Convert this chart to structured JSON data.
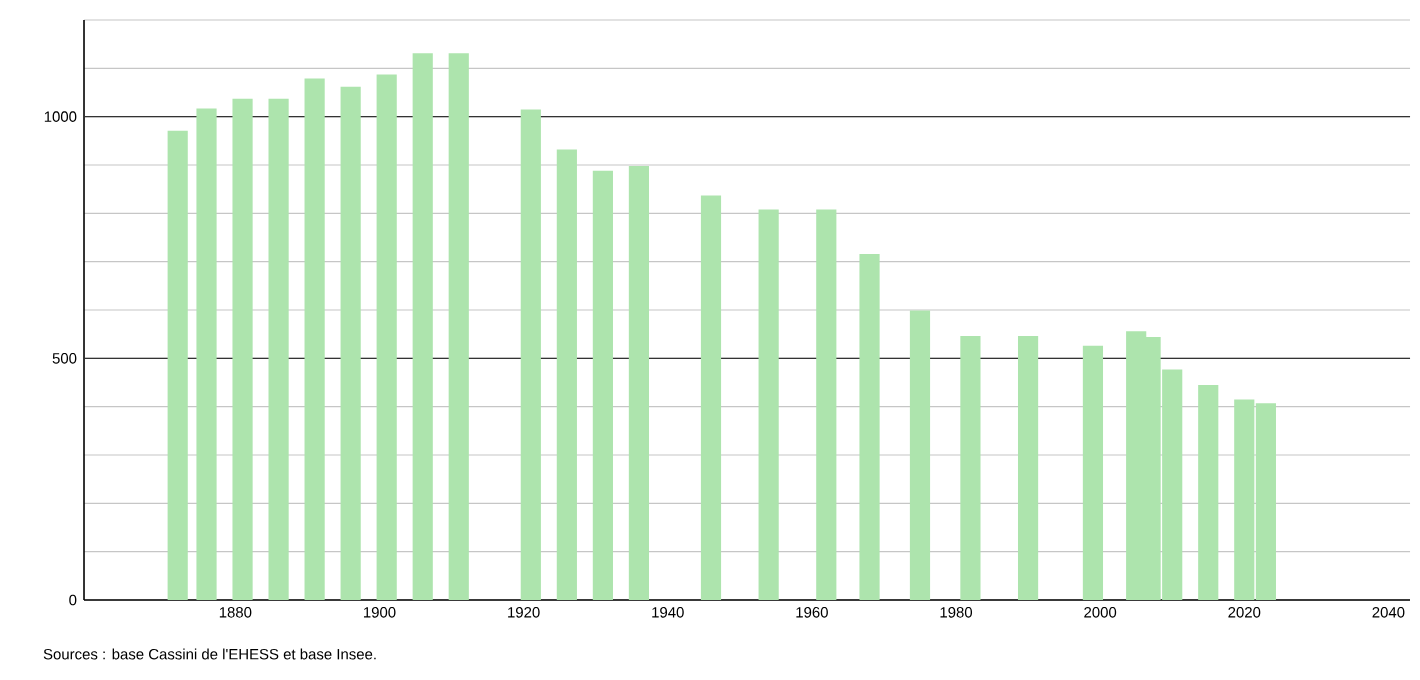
{
  "chart_data": {
    "type": "bar",
    "x": [
      1872,
      1876,
      1881,
      1886,
      1891,
      1896,
      1901,
      1906,
      1911,
      1921,
      1926,
      1931,
      1936,
      1946,
      1954,
      1962,
      1968,
      1975,
      1982,
      1990,
      1999,
      2005,
      2007,
      2010,
      2015,
      2020,
      2023
    ],
    "values": [
      971,
      1017,
      1037,
      1037,
      1079,
      1062,
      1087,
      1131,
      1131,
      1015,
      932,
      888,
      898,
      837,
      808,
      808,
      716,
      599,
      546,
      546,
      526,
      556,
      544,
      477,
      445,
      415,
      407
    ],
    "color": "#ade4ad",
    "xlim": [
      1859,
      2043
    ],
    "xticks": [
      1880,
      1900,
      1920,
      1940,
      1960,
      1980,
      2000,
      2020,
      2040
    ],
    "ylim": [
      0,
      1200
    ],
    "yticks": [
      0,
      {
        "value": 100,
        "label": null
      },
      {
        "value": 200,
        "label": null
      },
      {
        "value": 300,
        "label": null
      },
      {
        "value": 400,
        "label": null
      },
      500,
      {
        "value": 600,
        "label": null
      },
      {
        "value": 700,
        "label": null
      },
      {
        "value": 800,
        "label": null
      },
      {
        "value": 900,
        "label": null
      },
      1000,
      {
        "value": 1100,
        "label": null
      },
      {
        "value": 1200,
        "label": null
      }
    ],
    "grid": "y",
    "annotations": [
      "Sources : base Cassini de l'EHESS et base Insee."
    ]
  }
}
